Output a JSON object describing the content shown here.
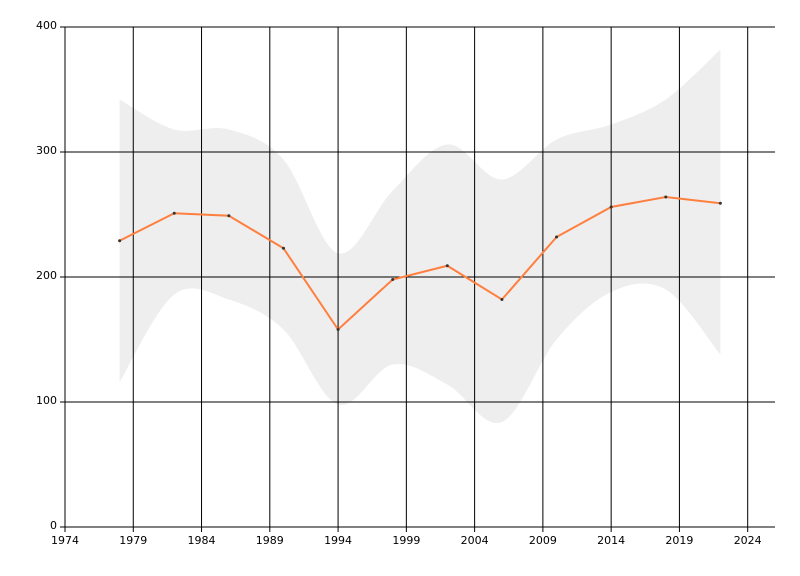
{
  "chart_data": {
    "type": "line",
    "x": [
      1978,
      1982,
      1986,
      1990,
      1994,
      1998,
      2002,
      2006,
      2010,
      2014,
      2018,
      2022
    ],
    "values": [
      229,
      251,
      249,
      223,
      158,
      198,
      209,
      182,
      232,
      256,
      264,
      259
    ],
    "color": "#ff7f3f",
    "band": {
      "upper": [
        342,
        318,
        318,
        294,
        219,
        269,
        306,
        278,
        310,
        322,
        342,
        382
      ],
      "lower": [
        116,
        186,
        182,
        158,
        98,
        130,
        114,
        84,
        150,
        188,
        190,
        138
      ],
      "color": "#eeeeee"
    },
    "xlim": [
      1974,
      2026
    ],
    "xticks": [
      1974,
      1979,
      1984,
      1989,
      1994,
      1999,
      2004,
      2009,
      2014,
      2019,
      2024
    ],
    "ylim": [
      0,
      400
    ],
    "yticks": [
      0,
      100,
      200,
      300,
      400
    ],
    "grid": true
  }
}
